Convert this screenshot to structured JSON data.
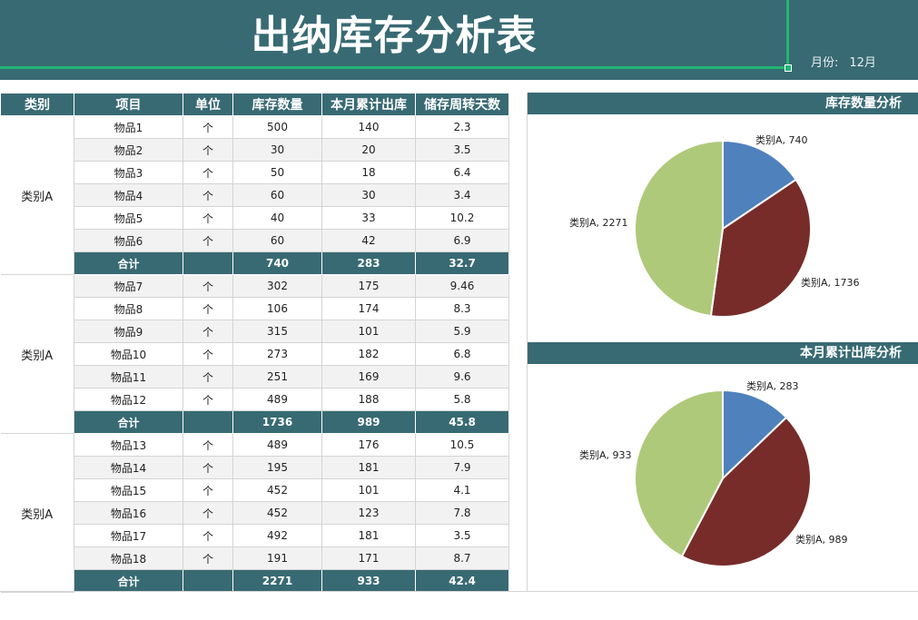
{
  "header": {
    "title": "出纳库存分析表",
    "month_label": "月份:",
    "month_value": "12月"
  },
  "table": {
    "columns": [
      "类别",
      "项目",
      "单位",
      "库存数量",
      "本月累计出库",
      "储存周转天数"
    ],
    "groups": [
      {
        "category": "类别A",
        "rows": [
          {
            "item": "物品1",
            "unit": "个",
            "stock": "500",
            "out": "140",
            "days": "2.3"
          },
          {
            "item": "物品2",
            "unit": "个",
            "stock": "30",
            "out": "20",
            "days": "3.5"
          },
          {
            "item": "物品3",
            "unit": "个",
            "stock": "50",
            "out": "18",
            "days": "6.4"
          },
          {
            "item": "物品4",
            "unit": "个",
            "stock": "60",
            "out": "30",
            "days": "3.4"
          },
          {
            "item": "物品5",
            "unit": "个",
            "stock": "40",
            "out": "33",
            "days": "10.2"
          },
          {
            "item": "物品6",
            "unit": "个",
            "stock": "60",
            "out": "42",
            "days": "6.9"
          }
        ],
        "total": {
          "label": "合计",
          "unit": "",
          "stock": "740",
          "out": "283",
          "days": "32.7"
        }
      },
      {
        "category": "类别A",
        "rows": [
          {
            "item": "物品7",
            "unit": "个",
            "stock": "302",
            "out": "175",
            "days": "9.46"
          },
          {
            "item": "物品8",
            "unit": "个",
            "stock": "106",
            "out": "174",
            "days": "8.3"
          },
          {
            "item": "物品9",
            "unit": "个",
            "stock": "315",
            "out": "101",
            "days": "5.9"
          },
          {
            "item": "物品10",
            "unit": "个",
            "stock": "273",
            "out": "182",
            "days": "6.8"
          },
          {
            "item": "物品11",
            "unit": "个",
            "stock": "251",
            "out": "169",
            "days": "9.6"
          },
          {
            "item": "物品12",
            "unit": "个",
            "stock": "489",
            "out": "188",
            "days": "5.8"
          }
        ],
        "total": {
          "label": "合计",
          "unit": "",
          "stock": "1736",
          "out": "989",
          "days": "45.8"
        }
      },
      {
        "category": "类别A",
        "rows": [
          {
            "item": "物品13",
            "unit": "个",
            "stock": "489",
            "out": "176",
            "days": "10.5"
          },
          {
            "item": "物品14",
            "unit": "个",
            "stock": "195",
            "out": "181",
            "days": "7.9"
          },
          {
            "item": "物品15",
            "unit": "个",
            "stock": "452",
            "out": "101",
            "days": "4.1"
          },
          {
            "item": "物品16",
            "unit": "个",
            "stock": "452",
            "out": "123",
            "days": "7.8"
          },
          {
            "item": "物品17",
            "unit": "个",
            "stock": "492",
            "out": "181",
            "days": "3.5"
          },
          {
            "item": "物品18",
            "unit": "个",
            "stock": "191",
            "out": "171",
            "days": "8.7"
          }
        ],
        "total": {
          "label": "合计",
          "unit": "",
          "stock": "2271",
          "out": "933",
          "days": "42.4"
        }
      }
    ]
  },
  "colors": {
    "header_bg": "#386a73",
    "selection": "#21b573",
    "slice_blue": "#4f81bd",
    "slice_red": "#772c2a",
    "slice_green": "#afc97a"
  },
  "chart_data": [
    {
      "type": "pie",
      "title": "库存数量分析",
      "categories": [
        "类别A",
        "类别A",
        "类别A"
      ],
      "values": [
        740,
        1736,
        2271
      ],
      "labels": [
        "类别A, 740",
        "类别A, 1736",
        "类别A, 2271"
      ],
      "colors": [
        "#4f81bd",
        "#772c2a",
        "#afc97a"
      ],
      "legend": "none",
      "data_labels": "outside"
    },
    {
      "type": "pie",
      "title": "本月累计出库分析",
      "categories": [
        "类别A",
        "类别A",
        "类别A"
      ],
      "values": [
        283,
        989,
        933
      ],
      "labels": [
        "类别A, 283",
        "类别A, 989",
        "类别A, 933"
      ],
      "colors": [
        "#4f81bd",
        "#772c2a",
        "#afc97a"
      ],
      "legend": "none",
      "data_labels": "outside"
    }
  ]
}
